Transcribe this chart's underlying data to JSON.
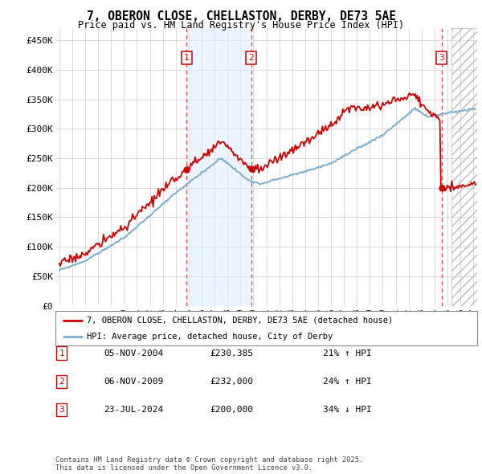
{
  "title": "7, OBERON CLOSE, CHELLASTON, DERBY, DE73 5AE",
  "subtitle": "Price paid vs. HM Land Registry's House Price Index (HPI)",
  "legend_property": "7, OBERON CLOSE, CHELLASTON, DERBY, DE73 5AE (detached house)",
  "legend_hpi": "HPI: Average price, detached house, City of Derby",
  "ylabel_ticks": [
    "£0",
    "£50K",
    "£100K",
    "£150K",
    "£200K",
    "£250K",
    "£300K",
    "£350K",
    "£400K",
    "£450K"
  ],
  "ylabel_values": [
    0,
    50000,
    100000,
    150000,
    200000,
    250000,
    300000,
    350000,
    400000,
    450000
  ],
  "ylim": [
    0,
    470000
  ],
  "xlim_start": 1994.7,
  "xlim_end": 2027.3,
  "sales": [
    {
      "num": 1,
      "date": "05-NOV-2004",
      "price": 230385,
      "year": 2004.84,
      "hpi_diff": "21% ↑ HPI"
    },
    {
      "num": 2,
      "date": "06-NOV-2009",
      "price": 232000,
      "year": 2009.84,
      "hpi_diff": "24% ↑ HPI"
    },
    {
      "num": 3,
      "date": "23-JUL-2024",
      "price": 200000,
      "year": 2024.55,
      "hpi_diff": "34% ↓ HPI"
    }
  ],
  "shade_x0": 2004.84,
  "shade_x1": 2009.84,
  "hatch_x0": 2025.3,
  "footer": "Contains HM Land Registry data © Crown copyright and database right 2025.\nThis data is licensed under the Open Government Licence v3.0.",
  "color_property": "#cc0000",
  "color_hpi": "#7aadcc",
  "color_marker_box": "#cc0000",
  "color_dashed": "#dd4444",
  "color_shade": "#ddeeff",
  "background_color": "#ffffff",
  "grid_color": "#cccccc"
}
